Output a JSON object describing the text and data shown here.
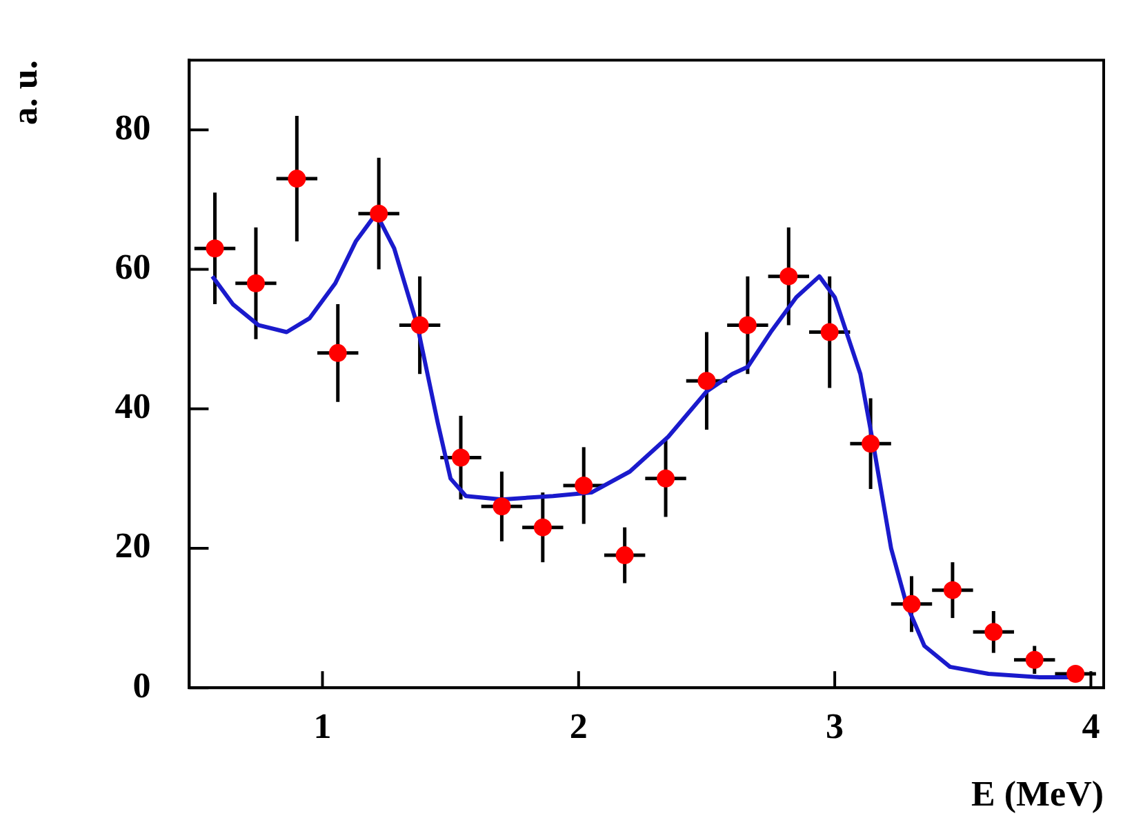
{
  "chart_data": {
    "type": "scatter",
    "xlabel": "E (MeV)",
    "ylabel": "a. u.",
    "xlim": [
      0.48,
      4.05
    ],
    "xticks": [
      1,
      2,
      3,
      4
    ],
    "ylim": [
      0,
      90
    ],
    "yticks": [
      0,
      20,
      40,
      60,
      80
    ],
    "grid": false,
    "legend": false,
    "series": [
      {
        "color": "#ff0000",
        "marker": "circle",
        "x": [
          0.58,
          0.74,
          0.9,
          1.06,
          1.22,
          1.38,
          1.54,
          1.7,
          1.86,
          2.02,
          2.18,
          2.34,
          2.5,
          2.66,
          2.82,
          2.98,
          3.14,
          3.3,
          3.46,
          3.62,
          3.78,
          3.94
        ],
        "values": [
          63,
          58,
          73,
          48,
          68,
          52,
          33,
          26,
          23,
          29,
          19,
          30,
          44,
          52,
          59,
          51,
          35,
          12,
          14,
          8,
          4,
          2
        ],
        "errors": [
          8,
          8,
          9,
          7,
          8,
          7,
          6,
          5,
          5,
          5.5,
          4,
          5.5,
          7,
          7,
          7,
          8,
          6.5,
          4,
          4,
          3,
          2,
          null
        ],
        "xerrors": [
          0.08,
          0.08,
          0.08,
          0.08,
          0.08,
          0.08,
          0.08,
          0.08,
          0.08,
          0.08,
          0.08,
          0.08,
          0.08,
          0.08,
          0.08,
          0.08,
          0.08,
          0.08,
          0.08,
          0.08,
          0.08,
          0.08
        ]
      },
      {
        "type": "line",
        "color": "#1a1acc",
        "marker": "none",
        "line_style": "solid",
        "x": [
          0.57,
          0.65,
          0.75,
          0.86,
          0.95,
          1.05,
          1.13,
          1.21,
          1.28,
          1.37,
          1.45,
          1.5,
          1.56,
          1.7,
          1.9,
          2.05,
          2.2,
          2.35,
          2.5,
          2.6,
          2.66,
          2.75,
          2.85,
          2.94,
          3.0,
          3.1,
          3.15,
          3.22,
          3.28,
          3.35,
          3.45,
          3.6,
          3.8,
          3.94
        ],
        "values": [
          59,
          55,
          52,
          51,
          53,
          58,
          64,
          68,
          63,
          52,
          38,
          30,
          27.5,
          27,
          27.5,
          28,
          31,
          36,
          42.5,
          45,
          46,
          51,
          56,
          59,
          56,
          45,
          35,
          20,
          12,
          6,
          3,
          2,
          1.5,
          1.5
        ]
      }
    ]
  }
}
